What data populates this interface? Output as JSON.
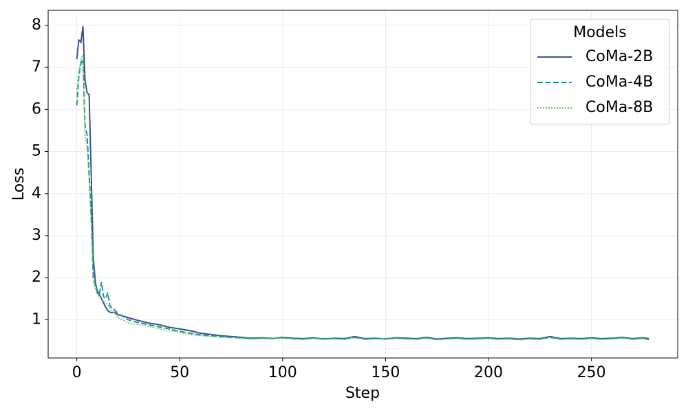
{
  "chart_data": {
    "type": "line",
    "x_label": "Step",
    "y_label": "Loss",
    "legend_title": "Models",
    "legend_position": "upper right",
    "grid": true,
    "xlim": [
      -13.9,
      291.9
    ],
    "xticks": [
      0,
      50,
      100,
      150,
      200,
      250
    ],
    "ylim": [
      0.09,
      8.36
    ],
    "yticks": [
      1,
      2,
      3,
      4,
      5,
      6,
      7,
      8
    ],
    "x": [
      0,
      1,
      2,
      3,
      4,
      5,
      6,
      7,
      8,
      9,
      10,
      11,
      12,
      13,
      14,
      15,
      16,
      17,
      18,
      19,
      20,
      25,
      30,
      35,
      40,
      45,
      50,
      55,
      60,
      65,
      70,
      75,
      80,
      85,
      90,
      95,
      100,
      105,
      110,
      115,
      120,
      125,
      130,
      135,
      140,
      145,
      150,
      155,
      160,
      165,
      170,
      175,
      180,
      185,
      190,
      195,
      200,
      205,
      210,
      215,
      220,
      225,
      230,
      235,
      240,
      245,
      250,
      255,
      260,
      265,
      270,
      275,
      278
    ],
    "series": [
      {
        "name": "CoMa-2B",
        "color": "#3b528b",
        "linestyle": "solid",
        "values": [
          7.2,
          7.65,
          7.6,
          7.98,
          6.7,
          6.4,
          6.35,
          4.5,
          2.5,
          1.9,
          1.65,
          1.6,
          1.5,
          1.4,
          1.3,
          1.22,
          1.18,
          1.17,
          1.18,
          1.15,
          1.12,
          1.05,
          0.98,
          0.92,
          0.88,
          0.82,
          0.78,
          0.74,
          0.68,
          0.65,
          0.62,
          0.6,
          0.58,
          0.56,
          0.57,
          0.55,
          0.58,
          0.56,
          0.55,
          0.57,
          0.54,
          0.56,
          0.55,
          0.6,
          0.55,
          0.56,
          0.54,
          0.57,
          0.56,
          0.55,
          0.58,
          0.54,
          0.56,
          0.57,
          0.55,
          0.56,
          0.57,
          0.55,
          0.56,
          0.54,
          0.56,
          0.55,
          0.6,
          0.55,
          0.56,
          0.55,
          0.57,
          0.55,
          0.56,
          0.58,
          0.55,
          0.57,
          0.55
        ]
      },
      {
        "name": "CoMa-4B",
        "color": "#21918c",
        "linestyle": "dashed",
        "values": [
          6.1,
          6.8,
          7.1,
          7.2,
          5.6,
          5.4,
          4.5,
          3.5,
          2.0,
          1.8,
          1.7,
          1.6,
          1.9,
          1.55,
          1.5,
          1.65,
          1.35,
          1.28,
          1.25,
          1.2,
          1.15,
          1.0,
          0.93,
          0.88,
          0.83,
          0.78,
          0.72,
          0.68,
          0.64,
          0.62,
          0.6,
          0.58,
          0.57,
          0.55,
          0.56,
          0.56,
          0.57,
          0.55,
          0.54,
          0.56,
          0.55,
          0.55,
          0.54,
          0.58,
          0.54,
          0.55,
          0.55,
          0.56,
          0.55,
          0.54,
          0.57,
          0.53,
          0.55,
          0.56,
          0.54,
          0.55,
          0.56,
          0.54,
          0.55,
          0.53,
          0.55,
          0.54,
          0.58,
          0.54,
          0.55,
          0.54,
          0.56,
          0.54,
          0.55,
          0.57,
          0.54,
          0.56,
          0.53
        ]
      },
      {
        "name": "CoMa-8B",
        "color": "#5ec962",
        "linestyle": "dotted",
        "values": [
          6.4,
          6.9,
          7.2,
          7.3,
          5.4,
          5.1,
          4.3,
          3.3,
          2.1,
          1.75,
          1.6,
          1.55,
          1.5,
          1.45,
          1.4,
          1.35,
          1.3,
          1.22,
          1.18,
          1.12,
          1.05,
          0.93,
          0.88,
          0.84,
          0.78,
          0.74,
          0.7,
          0.65,
          0.62,
          0.6,
          0.58,
          0.57,
          0.56,
          0.54,
          0.55,
          0.55,
          0.56,
          0.54,
          0.53,
          0.55,
          0.54,
          0.54,
          0.53,
          0.57,
          0.53,
          0.54,
          0.54,
          0.55,
          0.54,
          0.53,
          0.56,
          0.52,
          0.54,
          0.55,
          0.53,
          0.54,
          0.55,
          0.53,
          0.54,
          0.52,
          0.54,
          0.53,
          0.57,
          0.53,
          0.54,
          0.53,
          0.55,
          0.53,
          0.54,
          0.56,
          0.53,
          0.55,
          0.52
        ]
      }
    ]
  }
}
